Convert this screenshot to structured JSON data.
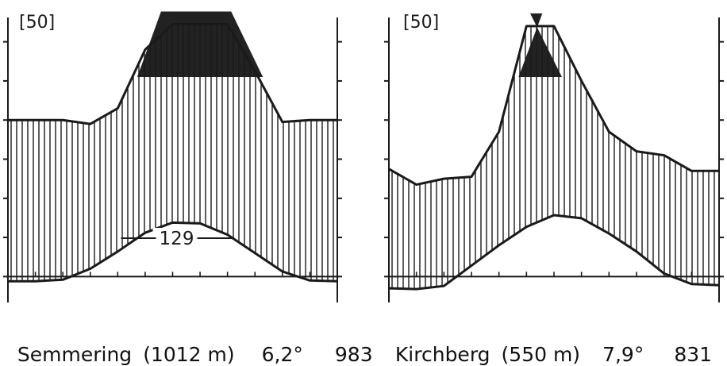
{
  "chart_data": [
    {
      "type": "area",
      "station": "Semmering",
      "elevation": "(1012 m)",
      "mean_temperature": "6,2°",
      "annual_precipitation": "983",
      "scale_label": "[50]",
      "annotation": "129",
      "x": [
        0,
        1,
        2,
        3,
        4,
        5,
        6,
        7,
        8,
        9,
        10,
        11,
        12
      ],
      "precipitation_mm": [
        80,
        80,
        80,
        78,
        86,
        116,
        129,
        129,
        129,
        105,
        79,
        80,
        80
      ],
      "temperature_c": [
        -1.2,
        -1.2,
        -0.8,
        2.0,
        6.4,
        11.2,
        13.8,
        13.6,
        10.7,
        6.0,
        1.3,
        -1.0,
        -1.2
      ],
      "ylim_precip": [
        -10,
        130
      ],
      "ylim_temp": [
        -5,
        65
      ]
    },
    {
      "type": "area",
      "station": "Kirchberg",
      "elevation": "(550 m)",
      "mean_temperature": "7,9°",
      "annual_precipitation": "831",
      "scale_label": "[50]",
      "x": [
        0,
        1,
        2,
        3,
        4,
        5,
        6,
        7,
        8,
        9,
        10,
        11,
        12
      ],
      "precipitation_mm": [
        55,
        47,
        50,
        51,
        74,
        128,
        128,
        100,
        74,
        64,
        62,
        54,
        54
      ],
      "temperature_c": [
        -3.0,
        -3.2,
        -2.4,
        2.8,
        8.0,
        12.7,
        15.7,
        14.9,
        11.0,
        6.4,
        0.8,
        -1.9,
        -2.2
      ],
      "ylim_precip": [
        -10,
        130
      ],
      "ylim_temp": [
        -5,
        65
      ]
    }
  ],
  "colors": {
    "ink": "#1a1a1a",
    "humid_fill": "#222222",
    "background": "#ffffff"
  }
}
